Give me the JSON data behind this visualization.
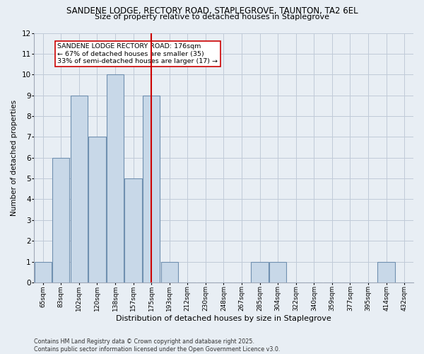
{
  "title_line1": "SANDENE LODGE, RECTORY ROAD, STAPLEGROVE, TAUNTON, TA2 6EL",
  "title_line2": "Size of property relative to detached houses in Staplegrove",
  "xlabel": "Distribution of detached houses by size in Staplegrove",
  "ylabel": "Number of detached properties",
  "categories": [
    "65sqm",
    "83sqm",
    "102sqm",
    "120sqm",
    "138sqm",
    "157sqm",
    "175sqm",
    "193sqm",
    "212sqm",
    "230sqm",
    "248sqm",
    "267sqm",
    "285sqm",
    "304sqm",
    "322sqm",
    "340sqm",
    "359sqm",
    "377sqm",
    "395sqm",
    "414sqm",
    "432sqm"
  ],
  "values": [
    1,
    6,
    9,
    7,
    10,
    5,
    9,
    1,
    0,
    0,
    0,
    0,
    1,
    1,
    0,
    0,
    0,
    0,
    0,
    1,
    0
  ],
  "bar_color": "#c8d8e8",
  "bar_edge_color": "#7090b0",
  "bar_linewidth": 0.8,
  "red_line_index": 6,
  "red_line_color": "#cc0000",
  "annotation_text": "SANDENE LODGE RECTORY ROAD: 176sqm\n← 67% of detached houses are smaller (35)\n33% of semi-detached houses are larger (17) →",
  "annotation_box_color": "#ffffff",
  "annotation_box_edge": "#cc0000",
  "ylim": [
    0,
    12
  ],
  "yticks": [
    0,
    1,
    2,
    3,
    4,
    5,
    6,
    7,
    8,
    9,
    10,
    11,
    12
  ],
  "background_color": "#e8eef4",
  "grid_color": "#c0cad8",
  "footer_text": "Contains HM Land Registry data © Crown copyright and database right 2025.\nContains public sector information licensed under the Open Government Licence v3.0."
}
